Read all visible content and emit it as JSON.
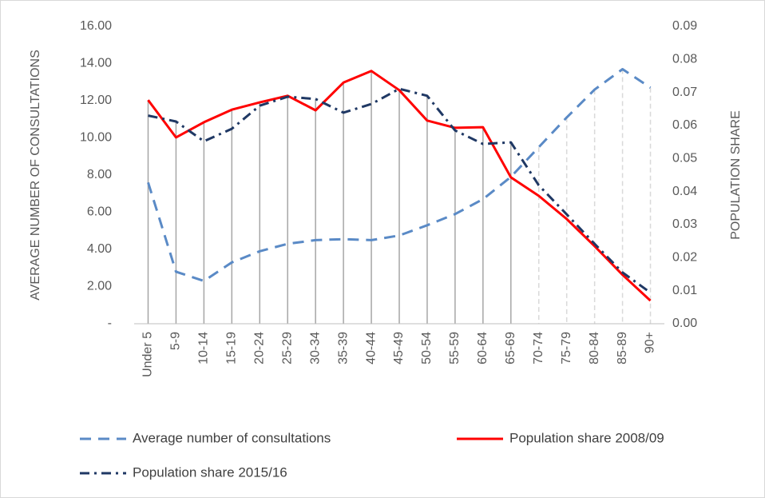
{
  "chart_data": {
    "type": "line",
    "y_label": "AVERAGE NUMBER OF CONSULTATIONS",
    "y2_label": "POPULATION SHARE",
    "categories": [
      "Under 5",
      "5-9",
      "10-14",
      "15-19",
      "20-24",
      "25-29",
      "30-34",
      "35-39",
      "40-44",
      "45-49",
      "50-54",
      "55-59",
      "60-64",
      "65-69",
      "70-74",
      "75-79",
      "80-84",
      "85-89",
      "90+"
    ],
    "series": [
      {
        "name": "Average number of consultations",
        "color": "#5a8ac6",
        "dash": "dashed",
        "values": [
          7.6,
          2.8,
          2.3,
          3.3,
          3.9,
          4.3,
          4.5,
          4.55,
          4.5,
          4.75,
          5.3,
          5.9,
          6.7,
          7.9,
          9.5,
          11.1,
          12.6,
          13.7,
          12.7
        ]
      },
      {
        "name": "Population share 2008/09",
        "color": "#ff0000",
        "dash": "solid",
        "axis": "y2",
        "values": [
          0.0677,
          0.0564,
          0.061,
          0.0648,
          0.067,
          0.069,
          0.0646,
          0.073,
          0.0765,
          0.0707,
          0.0615,
          0.0593,
          0.0595,
          0.0443,
          0.0387,
          0.0317,
          0.0235,
          0.0148,
          0.007
        ]
      },
      {
        "name": "Population share 2015/16",
        "color": "#1f3864",
        "dash": "dash-dot",
        "axis": "y2",
        "values": [
          0.063,
          0.0612,
          0.0552,
          0.059,
          0.066,
          0.0687,
          0.068,
          0.0639,
          0.0665,
          0.0711,
          0.069,
          0.0585,
          0.0544,
          0.0549,
          0.0419,
          0.0331,
          0.0242,
          0.0155,
          0.0094
        ]
      }
    ],
    "ylim": [
      0,
      16
    ],
    "yticks": [
      {
        "value": 0,
        "label": "-"
      },
      {
        "value": 2,
        "label": "2.00"
      },
      {
        "value": 4,
        "label": "4.00"
      },
      {
        "value": 6,
        "label": "6.00"
      },
      {
        "value": 8,
        "label": "8.00"
      },
      {
        "value": 10,
        "label": "10.00"
      },
      {
        "value": 12,
        "label": "12.00"
      },
      {
        "value": 14,
        "label": "14.00"
      },
      {
        "value": 16,
        "label": "16.00"
      }
    ],
    "y2lim": [
      0,
      0.09
    ],
    "y2ticks": [
      {
        "value": 0,
        "label": "0.00"
      },
      {
        "value": 0.01,
        "label": "0.01"
      },
      {
        "value": 0.02,
        "label": "0.02"
      },
      {
        "value": 0.03,
        "label": "0.03"
      },
      {
        "value": 0.04,
        "label": "0.04"
      },
      {
        "value": 0.05,
        "label": "0.05"
      },
      {
        "value": 0.06,
        "label": "0.06"
      },
      {
        "value": 0.07,
        "label": "0.07"
      },
      {
        "value": 0.08,
        "label": "0.08"
      },
      {
        "value": 0.09,
        "label": "0.09"
      }
    ],
    "drop_lines": true
  }
}
